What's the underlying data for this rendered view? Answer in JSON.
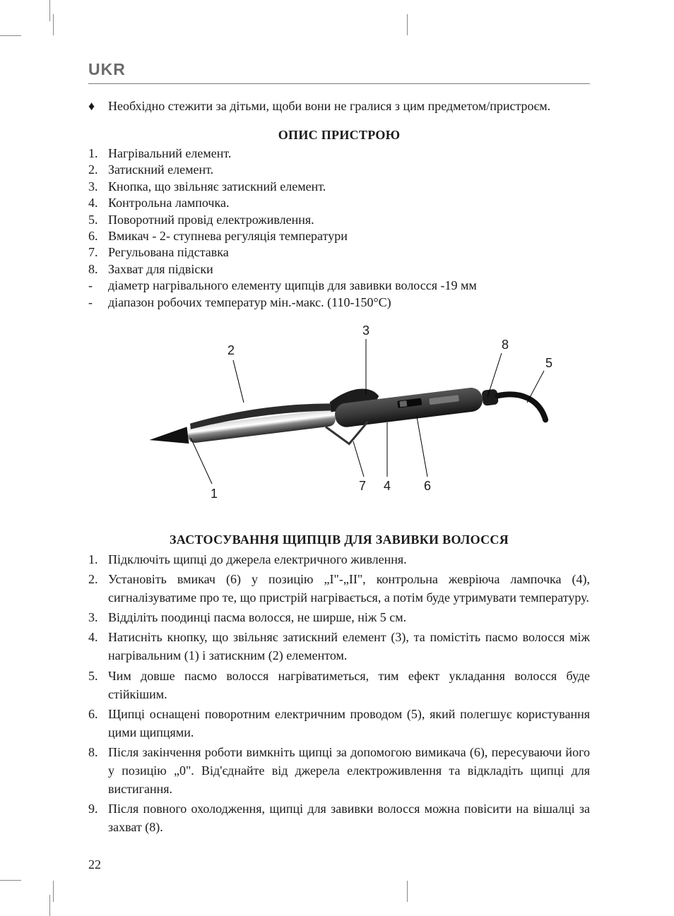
{
  "language_code": "UKR",
  "page_number": "22",
  "safety_bullet": {
    "mark": "♦",
    "text": "Необхідно стежити за дітьми, щоби вони не гралися з цим предметом/пристроєм."
  },
  "section_desc_title": "ОПИС ПРИСТРОЮ",
  "desc_items": [
    {
      "n": "1.",
      "t": "Нагрівальний елемент."
    },
    {
      "n": "2.",
      "t": "Затискний елемент."
    },
    {
      "n": "3.",
      "t": "Кнопка, що звільняє затискний елемент."
    },
    {
      "n": "4.",
      "t": "Контрольна лампочка."
    },
    {
      "n": "5.",
      "t": "Поворотний провід електроживлення."
    },
    {
      "n": "6.",
      "t": "Вмикач - 2- ступнева регуляція температури"
    },
    {
      "n": "7.",
      "t": "Регульована підставка"
    },
    {
      "n": "8.",
      "t": "Захват для підвіски"
    },
    {
      "n": "-",
      "t": "діаметр нагрівального елементу щипців для завивки волосся -19 мм"
    },
    {
      "n": "-",
      "t": "діапазон робочих температур мін.-макс. (110-150°C)"
    }
  ],
  "diagram": {
    "labels": [
      "1",
      "2",
      "3",
      "4",
      "5",
      "6",
      "7",
      "8"
    ],
    "label_font": 18,
    "colors": {
      "barrel": "#6f6f6f",
      "barrel_hi": "#d8d8d8",
      "barrel_lo": "#2b2b2b",
      "tip": "#111111",
      "handle": "#3a3a3a",
      "handle_dark": "#1c1c1c",
      "line": "#000000",
      "text": "#1a1a1a"
    }
  },
  "section_usage_title": "ЗАСТОСУВАННЯ ЩИПЦІВ ДЛЯ ЗАВИВКИ ВОЛОССЯ",
  "usage_items": [
    {
      "n": "1.",
      "t": "Підключіть щипці до джерела електричного живлення."
    },
    {
      "n": "2.",
      "t": "Установіть вмикач (6) у позицію „I\"-„II\", контрольна жевріюча лампочка (4), сигналізуватиме про те, що пристрій нагрівається, а потім буде утримувати температуру."
    },
    {
      "n": "3.",
      "t": "Відділіть поодинці пасма волосся, не ширше, ніж 5 см."
    },
    {
      "n": "4.",
      "t": "Натисніть кнопку, що звільняє затискний елемент (3), та помістіть пасмо волосся між нагрівальним (1) і затискним (2) елементом."
    },
    {
      "n": "5.",
      "t": "Чим довше пасмо волосся нагріватиметься, тим ефект укладання волосся буде стійкішим."
    },
    {
      "n": "6.",
      "t": "Щипці оснащені поворотним електричним проводом (5), який полегшує користування цими щипцями."
    },
    {
      "n": "8.",
      "t": "Після закінчення роботи вимкніть щипці за допомогою вимикача (6), пересуваючи його у позицію „0\". Від'єднайте від джерела електроживлення та відкладіть щипці для вистигання."
    },
    {
      "n": "9.",
      "t": "Після повного охолодження, щипці для завивки волосся можна повісити на вішалці за захват (8)."
    }
  ]
}
